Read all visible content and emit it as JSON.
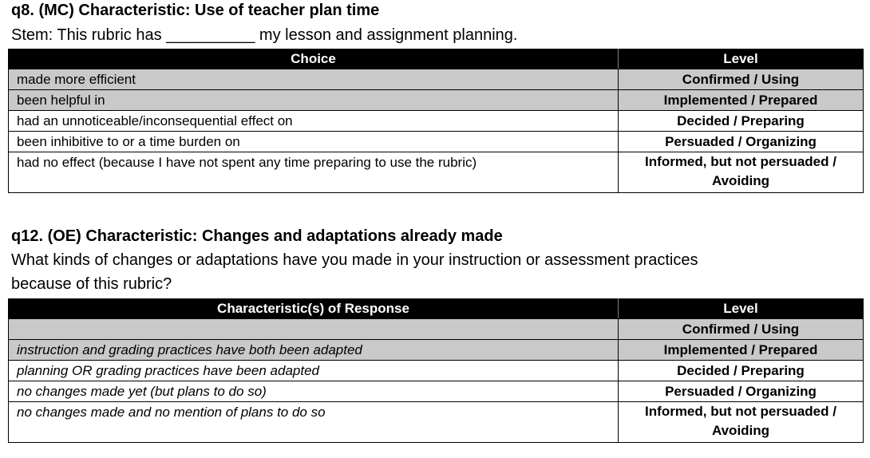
{
  "q8": {
    "title": "q8. (MC) Characteristic: Use of teacher plan time",
    "stem": "Stem: This rubric has __________ my lesson and assignment planning.",
    "headers": [
      "Choice",
      "Level"
    ],
    "rows": [
      {
        "choice": "made more efficient",
        "level": "Confirmed / Using"
      },
      {
        "choice": "been helpful in",
        "level": "Implemented / Prepared"
      },
      {
        "choice": "had an unnoticeable/inconsequential effect on",
        "level": "Decided / Preparing"
      },
      {
        "choice": "been inhibitive to or a time burden on",
        "level": "Persuaded / Organizing"
      },
      {
        "choice": "had no effect (because I have not spent any time preparing to use the rubric)",
        "level_line1": "Informed, but not persuaded /",
        "level_line2": "Avoiding"
      }
    ]
  },
  "q12": {
    "title": "q12. (OE) Characteristic: Changes and adaptations already made",
    "stem": "What kinds of changes or adaptations have you made in your instruction or assessment practices because of this rubric?",
    "headers": [
      "Characteristic(s) of Response",
      "Level"
    ],
    "rows": [
      {
        "choice": "",
        "level": "Confirmed / Using"
      },
      {
        "choice": "instruction and grading practices have both been adapted",
        "level": "Implemented / Prepared"
      },
      {
        "choice": "planning OR grading practices have been adapted",
        "level": "Decided / Preparing"
      },
      {
        "choice": "no changes made yet (but plans to do so)",
        "level": "Persuaded / Organizing"
      },
      {
        "choice": "no changes made and no mention of plans to do so",
        "level_line1": "Informed, but not persuaded /",
        "level_line2": "Avoiding"
      }
    ]
  },
  "colors": {
    "header_bg": "#000000",
    "shaded_row": "#c9c9c9"
  }
}
